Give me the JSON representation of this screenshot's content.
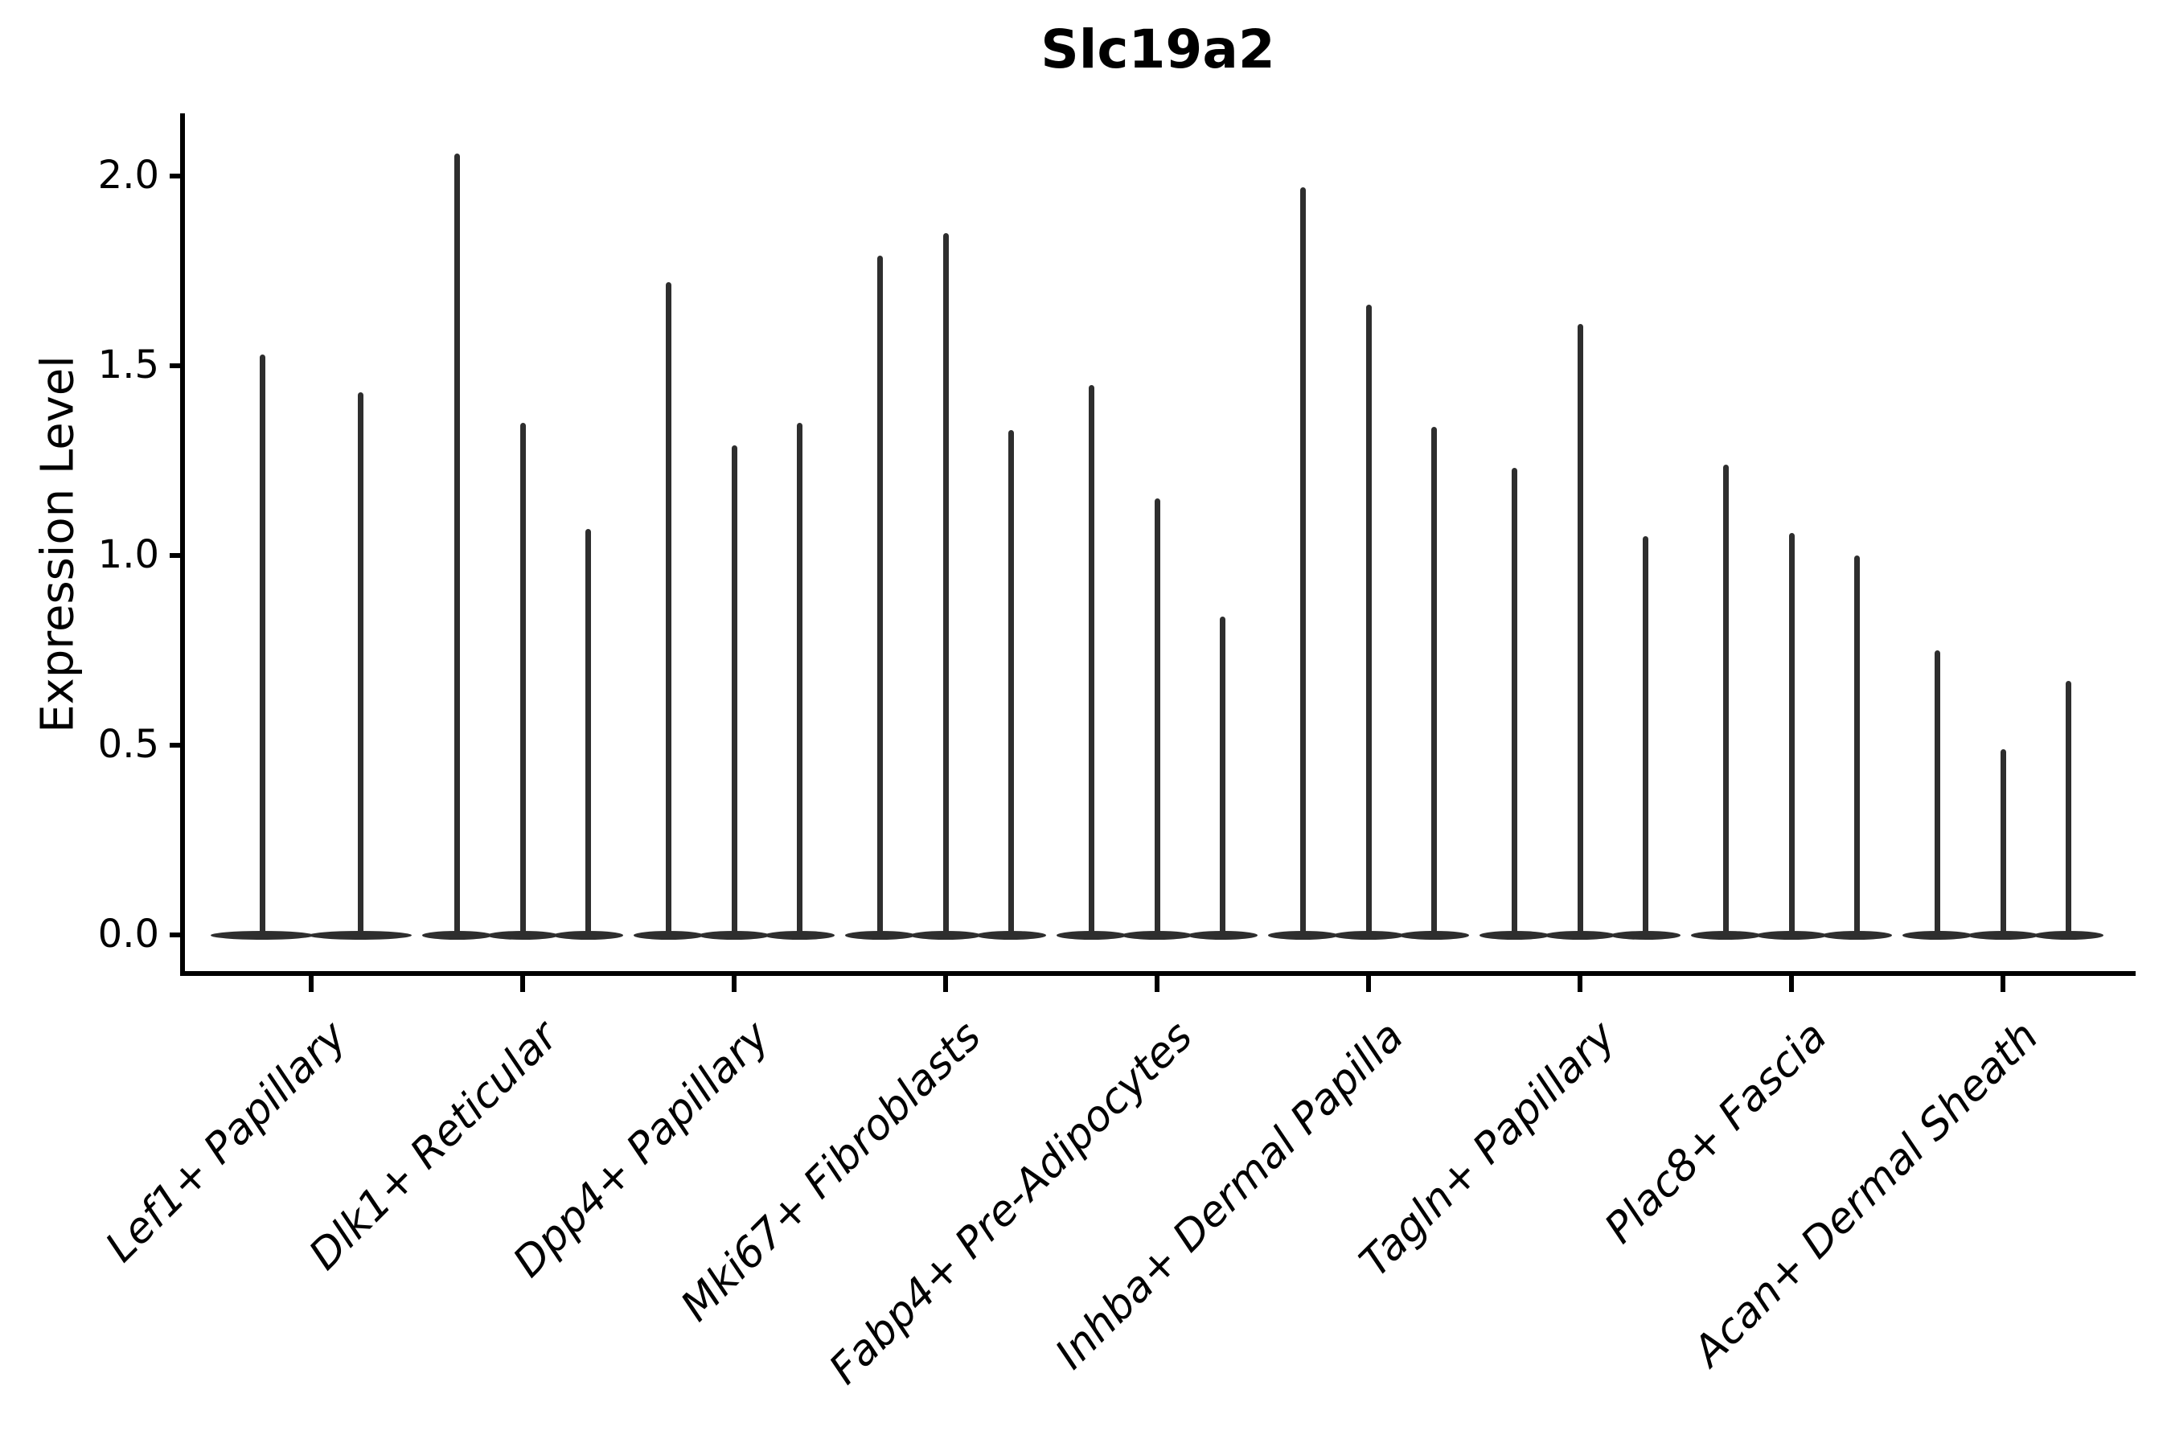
{
  "chart_data": {
    "type": "violin",
    "title": "Slc19a2",
    "ylabel": "Expression Level",
    "xlabel": "",
    "ylim": [
      -0.07,
      2.17
    ],
    "grid": false,
    "legend": null,
    "yticks": [
      {
        "value": 2.0,
        "label": "2.0"
      },
      {
        "value": 1.5,
        "label": "1.5"
      },
      {
        "value": 1.0,
        "label": "1.0"
      },
      {
        "value": 0.5,
        "label": "0.5"
      },
      {
        "value": 0.0,
        "label": "0.0"
      }
    ],
    "categories": [
      "Lef1+ Papillary",
      "Dlk1+ Reticular",
      "Dpp4+ Papillary",
      "Mki67+ Fibroblasts",
      "Fabp4+ Pre-Adipocytes",
      "Inhba+ Dermal Papilla",
      "Tagln+ Papillary",
      "Plac8+ Fascia",
      "Acan+ Dermal Sheath"
    ],
    "groups": [
      {
        "category": "Lef1+ Papillary",
        "violin_max": [
          1.53,
          1.43
        ]
      },
      {
        "category": "Dlk1+ Reticular",
        "violin_max": [
          2.06,
          1.35,
          1.07
        ]
      },
      {
        "category": "Dpp4+ Papillary",
        "violin_max": [
          1.72,
          1.29,
          1.35
        ]
      },
      {
        "category": "Mki67+ Fibroblasts",
        "violin_max": [
          1.79,
          1.85,
          1.33
        ]
      },
      {
        "category": "Fabp4+ Pre-Adipocytes",
        "violin_max": [
          1.45,
          1.15,
          0.84
        ]
      },
      {
        "category": "Inhba+ Dermal Papilla",
        "violin_max": [
          1.97,
          1.66,
          1.34
        ]
      },
      {
        "category": "Tagln+ Papillary",
        "violin_max": [
          1.23,
          1.61,
          1.05
        ]
      },
      {
        "category": "Plac8+ Fascia",
        "violin_max": [
          1.24,
          1.06,
          1.0
        ]
      },
      {
        "category": "Acan+ Dermal Sheath",
        "violin_max": [
          0.75,
          0.49,
          0.67
        ]
      }
    ],
    "colors": {
      "violin": "#2e2e2e",
      "ink": "#000000",
      "background": "#ffffff"
    }
  }
}
